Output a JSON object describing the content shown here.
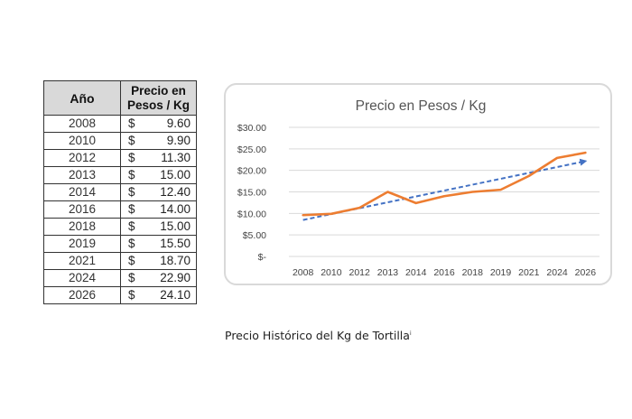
{
  "table": {
    "header_year": "Año",
    "header_price_line1": "Precio en",
    "header_price_line2": "Pesos / Kg",
    "currency": "$",
    "rows": [
      {
        "year": "2008",
        "price": "9.60"
      },
      {
        "year": "2010",
        "price": "9.90"
      },
      {
        "year": "2012",
        "price": "11.30"
      },
      {
        "year": "2013",
        "price": "15.00"
      },
      {
        "year": "2014",
        "price": "12.40"
      },
      {
        "year": "2016",
        "price": "14.00"
      },
      {
        "year": "2018",
        "price": "15.00"
      },
      {
        "year": "2019",
        "price": "15.50"
      },
      {
        "year": "2021",
        "price": "18.70"
      },
      {
        "year": "2024",
        "price": "22.90"
      },
      {
        "year": "2026",
        "price": "24.10"
      }
    ]
  },
  "chart_data": {
    "type": "line",
    "title": "Precio  en Pesos / Kg",
    "categories": [
      "2008",
      "2010",
      "2012",
      "2013",
      "2014",
      "2016",
      "2018",
      "2019",
      "2021",
      "2024",
      "2026"
    ],
    "series": [
      {
        "values": [
          9.6,
          9.9,
          11.3,
          15.0,
          12.4,
          14.0,
          15.0,
          15.5,
          18.7,
          22.9,
          24.1
        ],
        "color": "#ed7d31"
      }
    ],
    "trendline": {
      "style": "dashed-arrow",
      "color": "#4472c4"
    },
    "y_ticks": [
      "$-",
      "$5.00",
      "$10.00",
      "$15.00",
      "$20.00",
      "$25.00",
      "$30.00"
    ],
    "ylim": [
      0,
      30
    ],
    "grid": "horizontal",
    "legend": "none"
  },
  "caption": {
    "text": "Precio Histórico del Kg de Tortilla",
    "superscript": "i"
  }
}
